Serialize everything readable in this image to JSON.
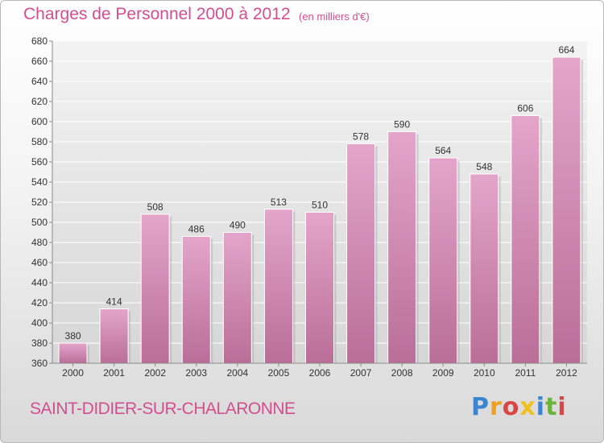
{
  "chart_data": {
    "type": "bar",
    "title": "Charges de Personnel 2000 à 2012",
    "subtitle": "(en milliers d'€)",
    "categories": [
      "2000",
      "2001",
      "2002",
      "2003",
      "2004",
      "2005",
      "2006",
      "2007",
      "2008",
      "2009",
      "2010",
      "2011",
      "2012"
    ],
    "values": [
      380,
      414,
      508,
      486,
      490,
      513,
      510,
      578,
      590,
      564,
      548,
      606,
      664
    ],
    "ylim": [
      360,
      680
    ],
    "yticks": [
      360,
      380,
      400,
      420,
      440,
      460,
      480,
      500,
      520,
      540,
      560,
      580,
      600,
      620,
      640,
      660,
      680
    ],
    "grid": true,
    "legend": "none",
    "bar_color_top": "#e4a5cb",
    "bar_color_bottom": "#b96e98"
  },
  "footer": {
    "commune": "SAINT-DIDIER-SUR-CHALARONNE"
  },
  "logo": {
    "letters": [
      "P",
      "r",
      "o",
      "x",
      "i",
      "t",
      "i"
    ],
    "colors": [
      "#3a86d0",
      "#f0a020",
      "#d94646",
      "#f0c020",
      "#3a86d0",
      "#6bb33a",
      "#d94646"
    ]
  }
}
